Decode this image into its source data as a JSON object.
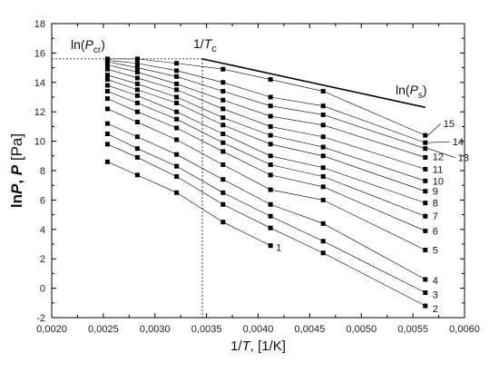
{
  "chart_data": {
    "type": "scatter",
    "xlabel": {
      "main": "1/",
      "italic": "T",
      "rest": ", [1/K]"
    },
    "ylabel": {
      "pre": "ln",
      "italic1": "P",
      "mid": ", ",
      "italic2": "P",
      "post": " [Pa]"
    },
    "xlim": [
      0.002,
      0.006
    ],
    "ylim": [
      -2,
      18
    ],
    "xticks": [
      "0,0020",
      "0,0025",
      "0,0030",
      "0,0035",
      "0,0040",
      "0,0045",
      "0,0050",
      "0,0055",
      "0,0060"
    ],
    "yticks": [
      "-2",
      "0",
      "2",
      "4",
      "6",
      "8",
      "10",
      "12",
      "14",
      "16",
      "18"
    ],
    "annotations": {
      "ln_pcr": {
        "pre": "ln(",
        "italic": "P",
        "sub": "cr",
        "post": ")"
      },
      "inv_tc": {
        "pre": "1/",
        "italic": "T",
        "sub": "c"
      },
      "ln_ps": {
        "pre": "ln(",
        "italic": "P",
        "sub": "s",
        "post": ")"
      }
    },
    "critical_point": {
      "x": 0.00346,
      "y": 15.6
    },
    "saturation_line": {
      "x": [
        0.00346,
        0.00562
      ],
      "y": [
        15.6,
        12.3
      ]
    },
    "series": [
      {
        "name": "1",
        "x": [
          0.00254,
          0.00283,
          0.00321,
          0.00366,
          0.00412
        ],
        "y": [
          8.6,
          7.7,
          6.5,
          4.5,
          2.9
        ]
      },
      {
        "name": "2",
        "x": [
          0.00254,
          0.00283,
          0.00321,
          0.00366,
          0.00412,
          0.00463,
          0.00562
        ],
        "y": [
          9.8,
          8.9,
          7.6,
          5.7,
          4.1,
          2.4,
          -1.2
        ]
      },
      {
        "name": "3",
        "x": [
          0.00254,
          0.00283,
          0.00321,
          0.00366,
          0.00412,
          0.00463,
          0.00562
        ],
        "y": [
          10.5,
          9.5,
          8.3,
          6.5,
          4.9,
          3.2,
          -0.3
        ]
      },
      {
        "name": "4",
        "x": [
          0.00254,
          0.00283,
          0.00321,
          0.00366,
          0.00412,
          0.00463,
          0.00562
        ],
        "y": [
          11.2,
          10.3,
          9.1,
          7.4,
          5.7,
          4.4,
          0.6
        ]
      },
      {
        "name": "5",
        "x": [
          0.00254,
          0.00283,
          0.00321,
          0.00366,
          0.00412,
          0.00463,
          0.00562
        ],
        "y": [
          12.2,
          11.3,
          10.1,
          8.4,
          6.7,
          6.0,
          2.6
        ]
      },
      {
        "name": "6",
        "x": [
          0.00254,
          0.00283,
          0.00321,
          0.00366,
          0.00412,
          0.00463,
          0.00562
        ],
        "y": [
          12.9,
          12.0,
          10.9,
          9.3,
          7.7,
          6.9,
          3.9
        ]
      },
      {
        "name": "7",
        "x": [
          0.00254,
          0.00283,
          0.00321,
          0.00366,
          0.00412,
          0.00463,
          0.00562
        ],
        "y": [
          13.4,
          12.6,
          11.5,
          9.9,
          8.4,
          7.6,
          4.9
        ]
      },
      {
        "name": "8",
        "x": [
          0.00254,
          0.00283,
          0.00321,
          0.00366,
          0.00412,
          0.00463,
          0.00562
        ],
        "y": [
          13.8,
          13.1,
          12.0,
          10.5,
          9.0,
          8.2,
          5.8
        ]
      },
      {
        "name": "9",
        "x": [
          0.00254,
          0.00283,
          0.00321,
          0.00366,
          0.00412,
          0.00463,
          0.00562
        ],
        "y": [
          14.2,
          13.5,
          12.6,
          11.1,
          9.8,
          9.0,
          6.6
        ]
      },
      {
        "name": "10",
        "x": [
          0.00254,
          0.00283,
          0.00321,
          0.00366,
          0.00412,
          0.00463,
          0.00562
        ],
        "y": [
          14.5,
          13.9,
          13.0,
          11.6,
          10.4,
          9.6,
          7.3
        ]
      },
      {
        "name": "11",
        "x": [
          0.00254,
          0.00283,
          0.00321,
          0.00366,
          0.00412,
          0.00463,
          0.00562
        ],
        "y": [
          14.9,
          14.3,
          13.5,
          12.2,
          11.0,
          10.3,
          8.1
        ]
      },
      {
        "name": "12",
        "x": [
          0.00254,
          0.00283,
          0.00321,
          0.00366,
          0.00412,
          0.00463,
          0.00562
        ],
        "y": [
          15.2,
          14.7,
          13.9,
          12.8,
          11.7,
          11.1,
          8.9
        ]
      },
      {
        "name": "13",
        "x": [
          0.00254,
          0.00283,
          0.00321,
          0.00366,
          0.00412,
          0.00463,
          0.00562
        ],
        "y": [
          15.4,
          15.0,
          14.4,
          13.4,
          12.4,
          11.8,
          9.5
        ]
      },
      {
        "name": "14",
        "x": [
          0.00254,
          0.00283,
          0.00321,
          0.00366,
          0.00412,
          0.00463,
          0.00562
        ],
        "y": [
          15.5,
          15.3,
          14.8,
          14.0,
          13.0,
          12.4,
          9.9
        ]
      },
      {
        "name": "15",
        "x": [
          0.00254,
          0.00283,
          0.00321,
          0.00366,
          0.00412,
          0.00463,
          0.00562
        ],
        "y": [
          15.6,
          15.6,
          15.3,
          14.9,
          14.2,
          13.4,
          10.4
        ]
      }
    ]
  }
}
